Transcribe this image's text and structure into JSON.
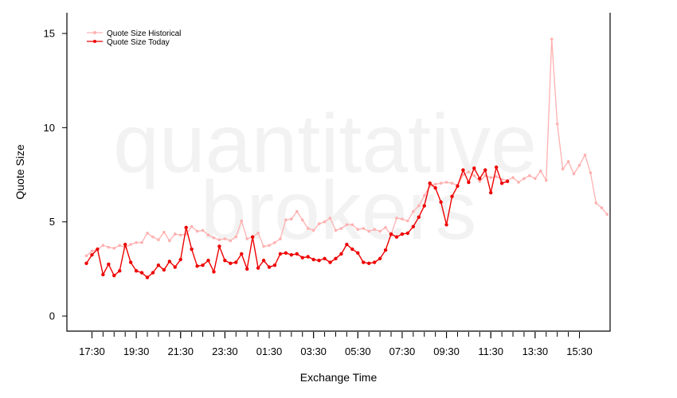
{
  "watermark": {
    "line1": "quantitative",
    "line2": "brokers"
  },
  "colors": {
    "historical": "#ffb0b0",
    "today": "#ee0000",
    "axis": "#000000"
  },
  "chart_data": {
    "type": "line",
    "title": "",
    "xlabel": "Exchange Time",
    "ylabel": "Quote Size",
    "ylim": [
      -0.8,
      16.1
    ],
    "yticks": [
      0,
      5,
      10,
      15
    ],
    "xticks": [
      "17:30",
      "19:30",
      "21:30",
      "23:30",
      "01:30",
      "03:30",
      "05:30",
      "07:30",
      "09:30",
      "11:30",
      "13:30",
      "15:30"
    ],
    "grid": false,
    "legend_position": "top-left",
    "x_note": "x values are 15-minute bin indices; index 0 = 17:15, labelled ticks every 8 bins starting at index 1",
    "series": [
      {
        "name": "Quote Size Historical",
        "values": [
          3.2,
          3.45,
          3.55,
          3.75,
          3.65,
          3.6,
          3.75,
          3.65,
          3.8,
          3.9,
          3.9,
          4.4,
          4.2,
          4.05,
          4.45,
          4.0,
          4.35,
          4.3,
          4.35,
          4.75,
          4.5,
          4.55,
          4.3,
          4.15,
          4.05,
          4.1,
          4.0,
          4.2,
          5.05,
          4.1,
          4.2,
          4.4,
          3.7,
          3.75,
          3.9,
          4.1,
          5.1,
          5.15,
          5.55,
          5.1,
          4.65,
          4.55,
          4.9,
          5.0,
          5.2,
          4.55,
          4.65,
          4.85,
          4.85,
          4.6,
          4.65,
          4.5,
          4.6,
          4.5,
          4.7,
          4.3,
          5.2,
          5.15,
          5.05,
          5.55,
          5.85,
          6.4,
          6.9,
          7.0,
          7.05,
          7.1,
          7.05,
          6.95,
          7.5,
          7.65,
          7.45,
          7.15,
          7.45,
          7.35,
          7.4,
          7.25,
          7.2,
          7.35,
          7.1,
          7.3,
          7.45,
          7.3,
          7.7,
          7.2,
          14.7,
          10.2,
          7.8,
          8.2,
          7.55,
          8.0,
          8.55,
          7.6,
          6.0,
          5.75,
          5.4
        ]
      },
      {
        "name": "Quote Size Today",
        "values": [
          2.8,
          3.25,
          3.55,
          2.2,
          2.75,
          2.15,
          2.4,
          3.8,
          2.85,
          2.4,
          2.3,
          2.05,
          2.3,
          2.7,
          2.45,
          2.9,
          2.6,
          3.0,
          4.7,
          3.55,
          2.65,
          2.7,
          2.95,
          2.35,
          3.7,
          2.95,
          2.8,
          2.85,
          3.3,
          2.5,
          4.2,
          2.55,
          2.95,
          2.6,
          2.7,
          3.3,
          3.35,
          3.25,
          3.3,
          3.1,
          3.15,
          3.0,
          2.95,
          3.05,
          2.85,
          3.05,
          3.3,
          3.8,
          3.55,
          3.35,
          2.85,
          2.8,
          2.85,
          3.05,
          3.5,
          4.35,
          4.2,
          4.35,
          4.4,
          4.75,
          5.25,
          5.85,
          7.05,
          6.8,
          6.05,
          4.85,
          6.35,
          6.9,
          7.75,
          7.1,
          7.85,
          7.3,
          7.75,
          6.55,
          7.9,
          7.05,
          7.15
        ]
      }
    ]
  }
}
